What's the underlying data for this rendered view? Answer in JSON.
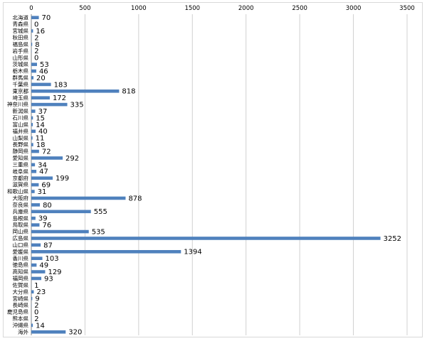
{
  "chart_data": {
    "type": "bar",
    "orientation": "horizontal",
    "xlim": [
      0,
      3500
    ],
    "x_ticks": [
      "0",
      "500",
      "1000",
      "1500",
      "2000",
      "2500",
      "3000",
      "3500"
    ],
    "x_tick_values": [
      0,
      500,
      1000,
      1500,
      2000,
      2500,
      3000,
      3500
    ],
    "grid": true,
    "bar_color": "#4f81bd",
    "categories": [
      "北海道",
      "青森県",
      "宮城県",
      "秋田県",
      "福島県",
      "岩手県",
      "山形県",
      "茨城県",
      "栃木県",
      "群馬県",
      "千葉県",
      "東京都",
      "埼玉県",
      "神奈川県",
      "新潟県",
      "石川県",
      "富山県",
      "福井県",
      "山梨県",
      "長野県",
      "静岡県",
      "愛知県",
      "三重県",
      "岐阜県",
      "京都府",
      "滋賀県",
      "和歌山県",
      "大阪府",
      "奈良県",
      "兵庫県",
      "島根県",
      "鳥取県",
      "岡山県",
      "広島県",
      "山口県",
      "愛媛県",
      "香川県",
      "徳島県",
      "高知県",
      "福岡県",
      "佐賀県",
      "大分県",
      "宮崎県",
      "長崎県",
      "鹿児島県",
      "熊本県",
      "沖縄県",
      "海外"
    ],
    "values": [
      70,
      0,
      16,
      2,
      8,
      2,
      0,
      53,
      46,
      20,
      183,
      818,
      172,
      335,
      37,
      15,
      14,
      40,
      11,
      18,
      72,
      292,
      34,
      47,
      199,
      69,
      31,
      878,
      80,
      555,
      39,
      76,
      535,
      3252,
      87,
      1394,
      103,
      49,
      129,
      93,
      1,
      23,
      9,
      2,
      0,
      2,
      14,
      320
    ],
    "value_labels": [
      "70",
      "0",
      "16",
      "2",
      "8",
      "2",
      "0",
      "53",
      "46",
      "20",
      "183",
      "818",
      "172",
      "335",
      "37",
      "15",
      "14",
      "40",
      "11",
      "18",
      "72",
      "292",
      "34",
      "47",
      "199",
      "69",
      "31",
      "878",
      "80",
      "555",
      "39",
      "76",
      "535",
      "3252",
      "87",
      "1394",
      "103",
      "49",
      "129",
      "93",
      "1",
      "23",
      "9",
      "2",
      "0",
      "2",
      "14",
      "320"
    ]
  }
}
